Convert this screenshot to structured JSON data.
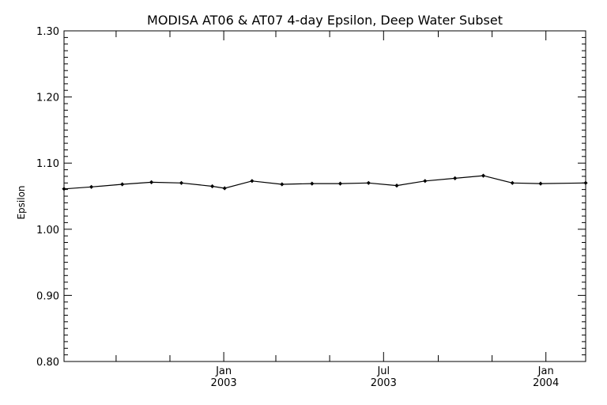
{
  "chart_data": {
    "type": "line",
    "title": "MODISA AT06 & AT07 4-day Epsilon, Deep Water Subset",
    "xlabel": "",
    "ylabel": "Epsilon",
    "xlim": [
      "2002-07-04",
      "2004-02-15"
    ],
    "ylim": [
      0.8,
      1.3
    ],
    "y_ticks": [
      "0.80",
      "0.90",
      "1.00",
      "1.10",
      "1.20",
      "1.30"
    ],
    "x_ticks": [
      {
        "date": "2003-01-01",
        "lines": [
          "Jan",
          "2003"
        ]
      },
      {
        "date": "2003-07-01",
        "lines": [
          "Jul",
          "2003"
        ]
      },
      {
        "date": "2004-01-01",
        "lines": [
          "Jan",
          "2004"
        ]
      }
    ],
    "x_minor_ticks": [
      "2002-09-01",
      "2002-11-01",
      "2003-03-01",
      "2003-05-01",
      "2003-09-01",
      "2003-11-01"
    ],
    "grid": false,
    "series": [
      {
        "color": "#000000",
        "x": [
          "2002-07-04",
          "2002-08-04",
          "2002-09-08",
          "2002-10-11",
          "2002-11-14",
          "2002-12-19",
          "2003-01-02",
          "2003-02-02",
          "2003-03-08",
          "2003-04-11",
          "2003-05-13",
          "2003-06-14",
          "2003-07-16",
          "2003-08-17",
          "2003-09-20",
          "2003-10-22",
          "2003-11-24",
          "2003-12-26",
          "2004-02-15"
        ],
        "y": [
          1.061,
          1.064,
          1.068,
          1.071,
          1.07,
          1.065,
          1.062,
          1.073,
          1.068,
          1.069,
          1.069,
          1.07,
          1.066,
          1.073,
          1.077,
          1.081,
          1.07,
          1.069,
          1.07
        ]
      }
    ]
  }
}
